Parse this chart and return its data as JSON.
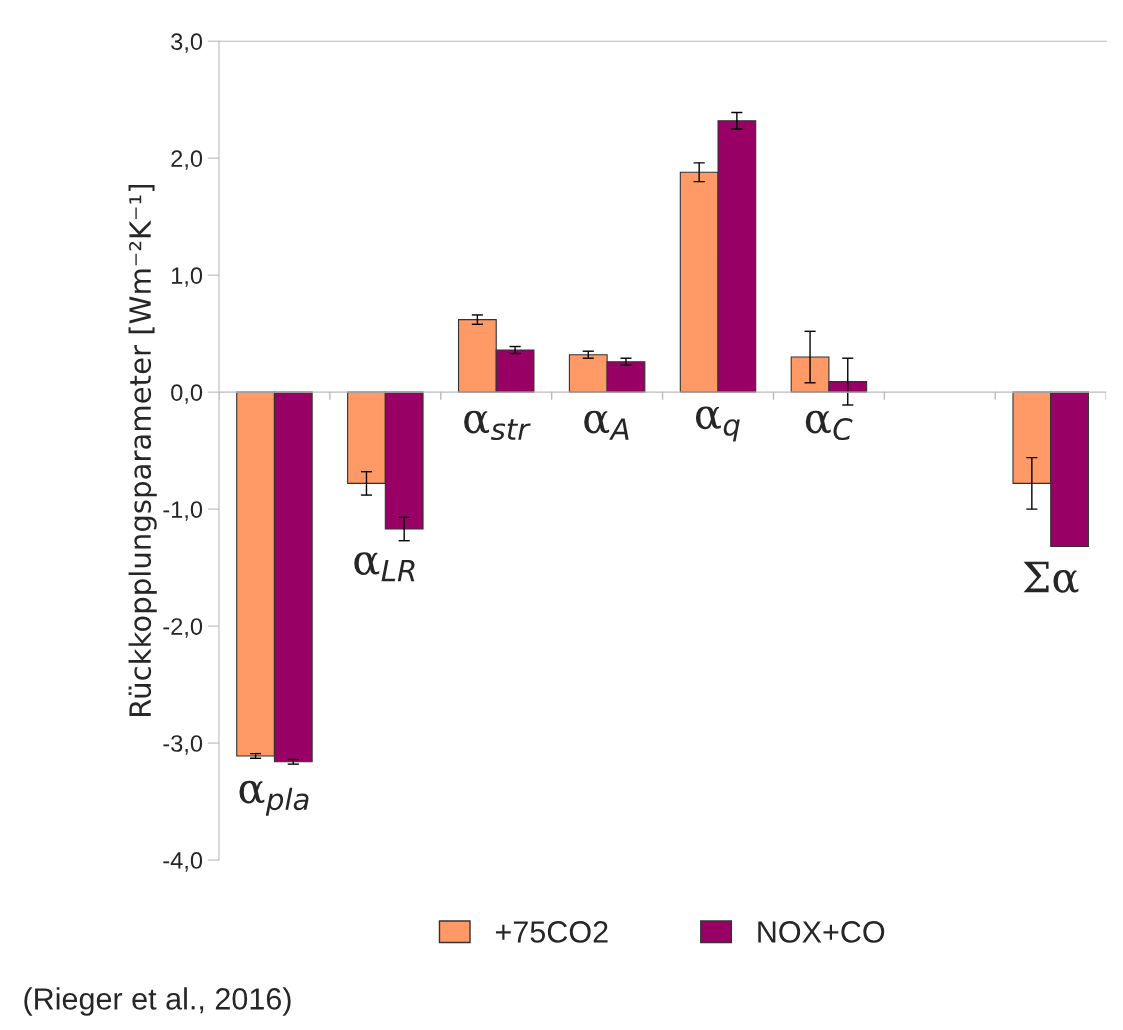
{
  "chart_data": {
    "type": "bar",
    "categories": [
      "α$_{pla}$",
      "α$_{LR}$",
      "α$_{str}$",
      "α$_{A}$",
      "α$_{q}$",
      "α$_{C}$",
      null,
      "Σα"
    ],
    "series": [
      {
        "name": "+75CO2",
        "color": "#ff9966",
        "values": [
          -3.11,
          -0.78,
          0.62,
          0.32,
          1.88,
          0.3,
          null,
          -0.78
        ],
        "errors": [
          0.02,
          0.1,
          0.04,
          0.03,
          0.08,
          0.22,
          null,
          0.22
        ]
      },
      {
        "name": "NOX+CO",
        "color": "#990066",
        "values": [
          -3.16,
          -1.17,
          0.36,
          0.26,
          2.32,
          0.09,
          null,
          -1.32
        ],
        "errors": [
          0.02,
          0.1,
          0.03,
          0.03,
          0.07,
          0.2,
          null,
          null
        ]
      }
    ],
    "ylabel": "Rückkopplungsparameter [Wm⁻²K⁻¹]",
    "ylim": [
      -4,
      3
    ],
    "yticks": [
      {
        "value": -4,
        "label": "-4,0"
      },
      {
        "value": -3,
        "label": "-3,0"
      },
      {
        "value": -2,
        "label": "-2,0"
      },
      {
        "value": -1,
        "label": "-1,0"
      },
      {
        "value": 0,
        "label": "0,0"
      },
      {
        "value": 1,
        "label": "1,0"
      },
      {
        "value": 2,
        "label": "2,0"
      },
      {
        "value": 3,
        "label": "3,0"
      }
    ],
    "legend": "bottom",
    "annotations": [
      "(Rieger et al., 2016)"
    ]
  }
}
